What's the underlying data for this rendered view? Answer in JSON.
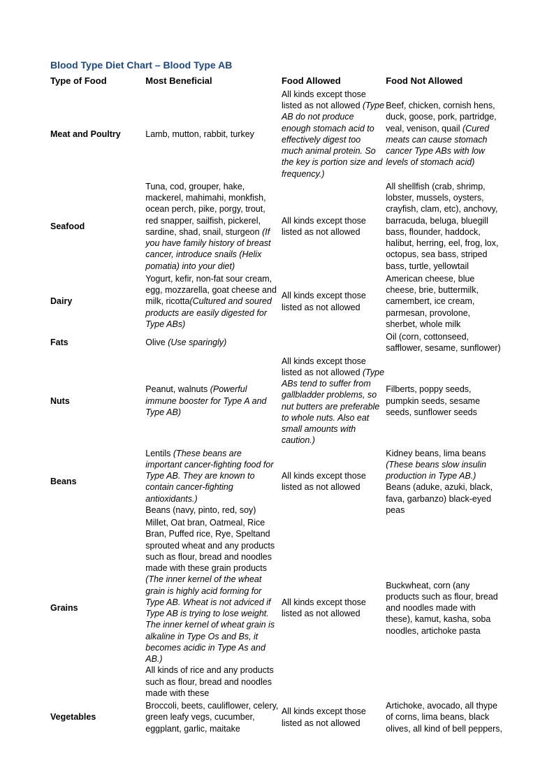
{
  "title": "Blood Type Diet Chart – Blood Type AB",
  "colors": {
    "title": "#1f497d",
    "text": "#000000",
    "background": "#ffffff"
  },
  "typography": {
    "title_fontsize": 14,
    "header_fontsize": 13,
    "body_fontsize": 12.5,
    "font_family": "Arial"
  },
  "table": {
    "columns": [
      "Type of Food",
      "Most Beneficial",
      "Food Allowed",
      "Food Not Allowed"
    ],
    "col_widths_pct": [
      21,
      30,
      23,
      26
    ],
    "rows": [
      {
        "type": "Meat and Poultry",
        "beneficial": [
          {
            "text": "Lamb, mutton, rabbit, turkey",
            "italic": false
          }
        ],
        "allowed": [
          {
            "text": "All kinds except those listed as not allowed ",
            "italic": false
          },
          {
            "text": "(Type AB do not produce enough stomach acid to effectively digest too much animal protein. So the key is portion size and frequency.)",
            "italic": true
          }
        ],
        "not_allowed": [
          {
            "text": "Beef, chicken, cornish hens, duck, goose, pork, partridge, veal,  venison,  quail ",
            "italic": false
          },
          {
            "text": "(Cured meats can cause stomach cancer Type ABs with low levels of stomach acid)",
            "italic": true
          }
        ]
      },
      {
        "type": "Seafood",
        "beneficial": [
          {
            "text": "Tuna, cod, grouper, hake, mackerel, mahimahi, monkfish, ocean perch, pike, porgy, trout, red snapper, sailfish, pickerel, sardine, shad, snail, sturgeon ",
            "italic": false
          },
          {
            "text": "(If you have family history of breast cancer, introduce snails (Helix pomatia) into your diet)",
            "italic": true
          }
        ],
        "allowed": [
          {
            "text": "All kinds except those listed as not allowed",
            "italic": false
          }
        ],
        "not_allowed": [
          {
            "text": "All shellfish (crab, shrimp, lobster, mussels, oysters, crayfish, clam, etc), anchovy, barracuda, beluga, bluegill bass, flounder, haddock, halibut, herring, eel, frog, lox, octopus, sea bass, striped bass, turtle, yellowtail",
            "italic": false
          }
        ]
      },
      {
        "type": "Dairy",
        "beneficial": [
          {
            "text": "Yogurt, kefir, non-fat sour cream, egg, mozzarella, goat cheese and milk, ricotta",
            "italic": false
          },
          {
            "text": "(Cultured and soured products are easily digested for Type ABs)",
            "italic": true
          }
        ],
        "allowed": [
          {
            "text": "All kinds except those listed as not allowed",
            "italic": false
          }
        ],
        "not_allowed": [
          {
            "text": "American cheese, blue cheese, brie, buttermilk, camembert, ice cream, parmesan, provolone, sherbet, whole milk",
            "italic": false
          }
        ]
      },
      {
        "type": "Fats",
        "beneficial": [
          {
            "text": "Olive ",
            "italic": false
          },
          {
            "text": "(Use sparingly)",
            "italic": true
          }
        ],
        "allowed": [
          {
            "text": "",
            "italic": false
          }
        ],
        "not_allowed": [
          {
            "text": "Oil (corn, cottonseed, safflower, sesame, sunflower)",
            "italic": false
          }
        ]
      },
      {
        "type": "Nuts",
        "beneficial": [
          {
            "text": "Peanut,  walnuts ",
            "italic": false
          },
          {
            "text": "(Powerful immune booster for Type A and Type AB)",
            "italic": true
          }
        ],
        "allowed": [
          {
            "text": "All kinds except those listed as not allowed ",
            "italic": false
          },
          {
            "text": "(Type ABs tend to suffer from gallbladder problems, so nut butters are preferable to whole nuts. Also eat small amounts with caution.)",
            "italic": true
          }
        ],
        "not_allowed": [
          {
            "text": "Filberts, poppy seeds, pumpkin seeds, sesame seeds, sunflower seeds",
            "italic": false
          }
        ]
      },
      {
        "type": "Beans",
        "beneficial": [
          {
            "text": "Lentils ",
            "italic": false
          },
          {
            "text": "(These beans are important cancer-fighting food for Type AB. They are known to contain cancer-fighting antioxidants.)",
            "italic": true
          },
          {
            "text": "Beans (navy, pinto, red, soy)",
            "italic": false,
            "newline": true
          }
        ],
        "allowed": [
          {
            "text": "All kinds except those listed as not allowed",
            "italic": false
          }
        ],
        "not_allowed": [
          {
            "text": "Kidney beans, lima beans ",
            "italic": false
          },
          {
            "text": "(These beans slow insulin production in Type AB.)",
            "italic": true
          },
          {
            "text": "Beans (aduke, azuki, black, fava, garbanzo) black-eyed peas",
            "italic": false,
            "newline": true
          }
        ]
      },
      {
        "type": "Grains",
        "beneficial": [
          {
            "text": "Millet, Oat bran, Oatmeal, Rice Bran, Puffed rice, Rye, Speltand sprouted wheat and any products such as flour, bread and noodles made with these grain products ",
            "italic": false
          },
          {
            "text": "(The inner kernel of the wheat grain is highly acid forming for Type AB. Wheat is not adviced if Type AB is trying to lose weight. The inner kernel of wheat grain is alkaline in Type Os and Bs, it becomes acidic in Type As and AB.)",
            "italic": true
          },
          {
            "text": "All kinds of rice and any products such as flour, bread and noodles made with these",
            "italic": false,
            "newline": true
          }
        ],
        "allowed": [
          {
            "text": "All kinds except those listed as not allowed",
            "italic": false
          }
        ],
        "not_allowed": [
          {
            "text": "Buckwheat, corn (any products such as flour, bread and noodles made with these), kamut, kasha, soba noodles, artichoke pasta",
            "italic": false
          }
        ]
      },
      {
        "type": "Vegetables",
        "beneficial": [
          {
            "text": "Broccoli, beets, cauliflower, celery, green leafy vegs, cucumber, eggplant, garlic, maitake",
            "italic": false
          }
        ],
        "allowed": [
          {
            "text": "All kinds except those listed as not allowed",
            "italic": false
          }
        ],
        "not_allowed": [
          {
            "text": "Artichoke, avocado, all thype of corns, lima beans, black olives, all kind of bell peppers,",
            "italic": false
          }
        ]
      }
    ]
  }
}
